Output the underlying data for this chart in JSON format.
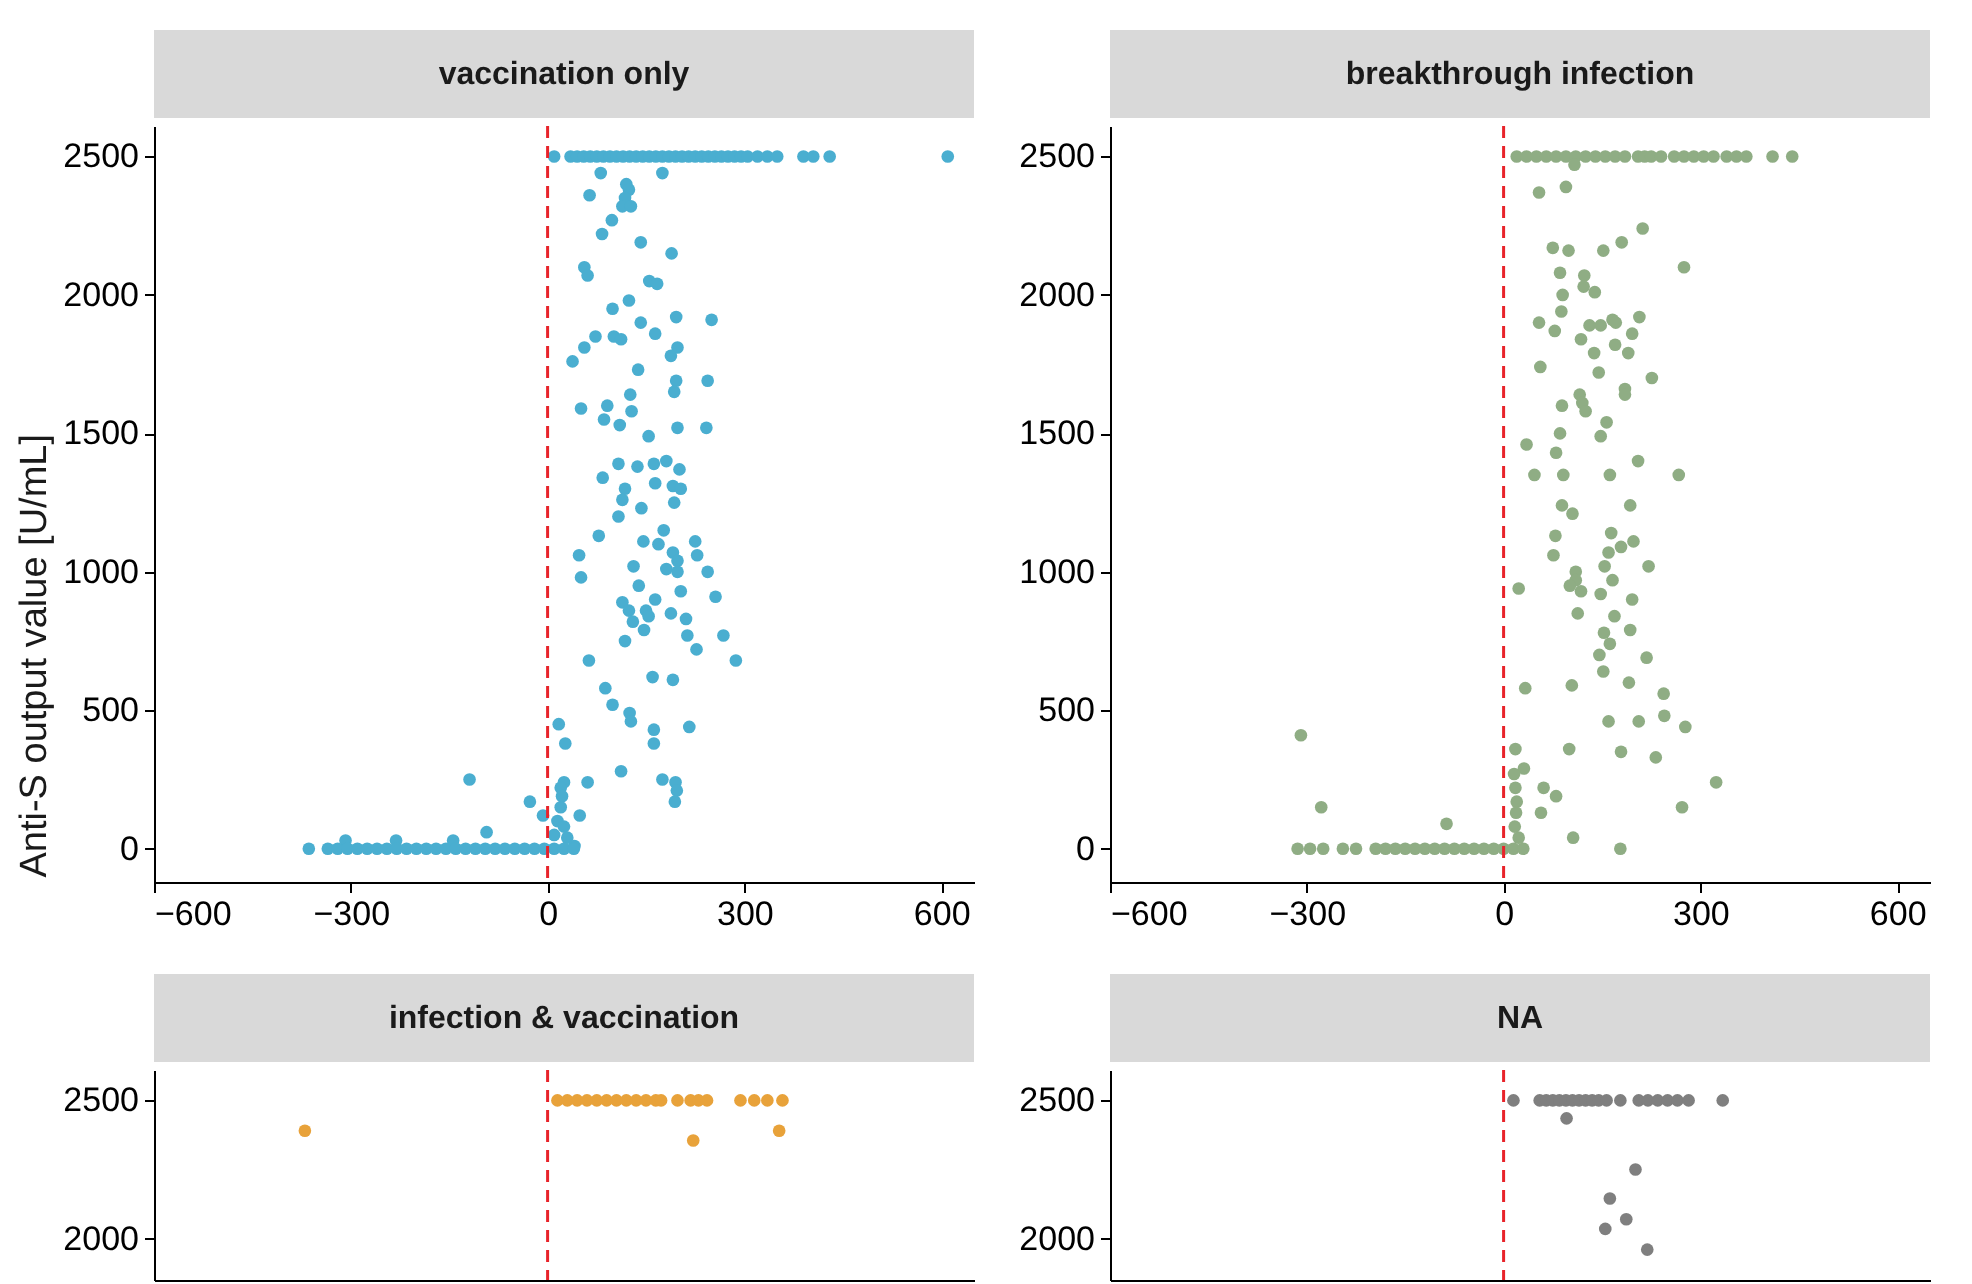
{
  "chart_data": [
    {
      "type": "scatter",
      "title": "vaccination only",
      "ylabel": "Anti-S output value [U/mL]",
      "color": "#4aaed0",
      "marker": "circle",
      "xlim": [
        -600,
        650
      ],
      "ylim": [
        -120,
        2610
      ],
      "xticks": [
        -600,
        -300,
        0,
        300,
        600
      ],
      "yticks": [
        0,
        500,
        1000,
        1500,
        2000,
        2500
      ],
      "ref_lines": [
        {
          "axis": "x",
          "value": 0,
          "color": "#e8232a",
          "line_style": "dashed"
        }
      ],
      "x": [
        10,
        35,
        45,
        55,
        65,
        75,
        85,
        95,
        105,
        115,
        125,
        135,
        145,
        155,
        165,
        175,
        185,
        195,
        205,
        215,
        225,
        235,
        245,
        255,
        265,
        275,
        285,
        295,
        305,
        320,
        335,
        350,
        390,
        405,
        430,
        610,
        81,
        120,
        124,
        118,
        114,
        127,
        175,
        64,
        98,
        83,
        142,
        189,
        56,
        61,
        155,
        167,
        124,
        99,
        142,
        196,
        250,
        164,
        101,
        112,
        73,
        56,
        38,
        198,
        188,
        138,
        196,
        193,
        244,
        126,
        51,
        91,
        128,
        86,
        110,
        198,
        242,
        154,
        108,
        137,
        162,
        181,
        201,
        84,
        164,
        118,
        114,
        191,
        203,
        143,
        193,
        108,
        78,
        177,
        146,
        169,
        225,
        228,
        48,
        191,
        198,
        131,
        181,
        198,
        244,
        51,
        139,
        203,
        256,
        114,
        124,
        130,
        150,
        147,
        154,
        164,
        188,
        211,
        213,
        118,
        227,
        268,
        287,
        63,
        160,
        191,
        88,
        99,
        125,
        127,
        17,
        162,
        162,
        216,
        27,
        112,
        -119,
        61,
        175,
        195,
        197,
        194,
        25,
        20,
        22,
        20,
        15,
        25,
        30,
        -27,
        -7,
        49,
        -93,
        -308,
        -231,
        -144,
        10,
        41,
        -364,
        -335,
        -320,
        -305,
        -290,
        -275,
        -260,
        -245,
        -230,
        -215,
        -200,
        -185,
        -170,
        -155,
        -140,
        -125,
        -110,
        -95,
        -80,
        -65,
        -50,
        -35,
        -20,
        -5,
        10,
        25,
        40
      ],
      "values": [
        2500,
        2500,
        2500,
        2500,
        2500,
        2500,
        2500,
        2500,
        2500,
        2500,
        2500,
        2500,
        2500,
        2500,
        2500,
        2500,
        2500,
        2500,
        2500,
        2500,
        2500,
        2500,
        2500,
        2500,
        2500,
        2500,
        2500,
        2500,
        2500,
        2500,
        2500,
        2500,
        2500,
        2500,
        2500,
        2500,
        2440,
        2400,
        2380,
        2350,
        2320,
        2320,
        2440,
        2360,
        2270,
        2220,
        2190,
        2150,
        2100,
        2070,
        2050,
        2040,
        1980,
        1950,
        1900,
        1920,
        1910,
        1860,
        1850,
        1840,
        1850,
        1810,
        1760,
        1810,
        1780,
        1730,
        1690,
        1650,
        1690,
        1640,
        1590,
        1600,
        1580,
        1550,
        1530,
        1520,
        1520,
        1490,
        1390,
        1380,
        1390,
        1400,
        1370,
        1340,
        1320,
        1300,
        1260,
        1310,
        1300,
        1230,
        1250,
        1200,
        1130,
        1150,
        1110,
        1100,
        1110,
        1060,
        1060,
        1070,
        1040,
        1020,
        1010,
        1000,
        1000,
        980,
        950,
        930,
        910,
        890,
        860,
        820,
        860,
        790,
        840,
        900,
        850,
        830,
        770,
        750,
        720,
        770,
        680,
        680,
        620,
        610,
        580,
        520,
        490,
        460,
        450,
        430,
        380,
        440,
        380,
        280,
        250,
        240,
        250,
        240,
        210,
        170,
        240,
        220,
        190,
        150,
        100,
        80,
        40,
        170,
        120,
        120,
        60,
        30,
        30,
        30,
        50,
        10,
        0,
        0,
        0,
        0,
        0,
        0,
        0,
        0,
        0,
        0,
        0,
        0,
        0,
        0,
        0,
        0,
        0,
        0,
        0,
        0,
        0,
        0,
        0,
        0,
        0,
        0,
        0
      ]
    },
    {
      "type": "scatter",
      "title": "breakthrough infection",
      "color": "#8fad84",
      "marker": "circle",
      "xlim": [
        -600,
        650
      ],
      "ylim": [
        -120,
        2610
      ],
      "xticks": [
        -600,
        -300,
        0,
        300,
        600
      ],
      "yticks": [
        0,
        500,
        1000,
        1500,
        2000,
        2500
      ],
      "ref_lines": [
        {
          "axis": "x",
          "value": 0,
          "color": "#e8232a",
          "line_style": "dashed"
        }
      ],
      "x": [
        20,
        35,
        50,
        65,
        80,
        95,
        110,
        125,
        140,
        155,
        170,
        185,
        205,
        215,
        225,
        240,
        260,
        275,
        290,
        305,
        320,
        340,
        355,
        370,
        410,
        440,
        108,
        54,
        95,
        212,
        180,
        152,
        75,
        99,
        275,
        86,
        123,
        122,
        139,
        90,
        88,
        54,
        78,
        131,
        148,
        166,
        171,
        207,
        196,
        118,
        170,
        138,
        190,
        56,
        145,
        226,
        116,
        120,
        89,
        125,
        185,
        185,
        157,
        86,
        148,
        35,
        80,
        205,
        47,
        91,
        162,
        267,
        89,
        105,
        193,
        79,
        164,
        198,
        179,
        76,
        160,
        154,
        221,
        110,
        110,
        101,
        118,
        166,
        23,
        148,
        196,
        113,
        169,
        153,
        193,
        162,
        146,
        218,
        152,
        33,
        104,
        191,
        244,
        245,
        160,
        206,
        277,
        -309,
        18,
        100,
        179,
        232,
        31,
        324,
        61,
        80,
        -278,
        272,
        57,
        -87,
        106,
        178,
        16,
        18,
        20,
        19,
        17,
        23,
        -314,
        -295,
        -275,
        -245,
        -225,
        -195,
        -180,
        -165,
        -150,
        -135,
        -120,
        -105,
        -90,
        -75,
        -60,
        -45,
        -30,
        -15,
        0,
        15,
        30
      ],
      "values": [
        2500,
        2500,
        2500,
        2500,
        2500,
        2500,
        2500,
        2500,
        2500,
        2500,
        2500,
        2500,
        2500,
        2500,
        2500,
        2500,
        2500,
        2500,
        2500,
        2500,
        2500,
        2500,
        2500,
        2500,
        2500,
        2500,
        2470,
        2370,
        2390,
        2240,
        2190,
        2160,
        2170,
        2160,
        2100,
        2080,
        2070,
        2030,
        2010,
        2000,
        1940,
        1900,
        1870,
        1890,
        1890,
        1910,
        1900,
        1920,
        1860,
        1840,
        1820,
        1790,
        1790,
        1740,
        1720,
        1700,
        1640,
        1610,
        1600,
        1580,
        1660,
        1640,
        1540,
        1500,
        1490,
        1460,
        1430,
        1400,
        1350,
        1350,
        1350,
        1350,
        1240,
        1210,
        1240,
        1130,
        1140,
        1110,
        1090,
        1060,
        1070,
        1020,
        1020,
        1000,
        970,
        950,
        930,
        970,
        940,
        920,
        900,
        850,
        840,
        780,
        790,
        740,
        700,
        690,
        640,
        580,
        590,
        600,
        560,
        480,
        460,
        460,
        440,
        410,
        360,
        360,
        350,
        330,
        290,
        240,
        220,
        190,
        150,
        150,
        130,
        90,
        40,
        0,
        270,
        220,
        170,
        130,
        80,
        40,
        0,
        0,
        0,
        0,
        0,
        0,
        0,
        0,
        0,
        0,
        0,
        0,
        0,
        0,
        0,
        0,
        0,
        0,
        0,
        0,
        0
      ]
    },
    {
      "type": "scatter",
      "title": "infection & vaccination",
      "color": "#e8a23a",
      "marker": "circle",
      "xlim": [
        -600,
        650
      ],
      "ylim": [
        1850,
        2610
      ],
      "xticks": [
        -600,
        -300,
        0,
        300,
        600
      ],
      "yticks": [
        2000,
        2500
      ],
      "tick_labels": "y",
      "ref_lines": [
        {
          "axis": "x",
          "value": 0,
          "color": "#e8232a",
          "line_style": "dashed"
        }
      ],
      "x": [
        15,
        30,
        45,
        60,
        75,
        90,
        105,
        120,
        135,
        150,
        165,
        173,
        198,
        218,
        230,
        243,
        294,
        315,
        335,
        358,
        -370,
        222,
        353
      ],
      "values": [
        2500,
        2500,
        2500,
        2500,
        2500,
        2500,
        2500,
        2500,
        2500,
        2500,
        2500,
        2500,
        2500,
        2500,
        2500,
        2500,
        2500,
        2500,
        2500,
        2500,
        2390,
        2355,
        2390
      ]
    },
    {
      "type": "scatter",
      "title": "NA",
      "color": "#7f7f7f",
      "marker": "circle",
      "xlim": [
        -600,
        650
      ],
      "ylim": [
        1850,
        2610
      ],
      "xticks": [
        -600,
        -300,
        0,
        300,
        600
      ],
      "yticks": [
        2000,
        2500
      ],
      "tick_labels": "y",
      "ref_lines": [
        {
          "axis": "x",
          "value": 0,
          "color": "#e8232a",
          "line_style": "dashed"
        }
      ],
      "x": [
        15,
        55,
        65,
        75,
        85,
        95,
        105,
        115,
        125,
        135,
        145,
        157,
        178,
        206,
        220,
        235,
        250,
        265,
        282,
        334,
        96,
        201,
        162,
        187,
        155,
        219
      ],
      "values": [
        2500,
        2500,
        2500,
        2500,
        2500,
        2500,
        2500,
        2500,
        2500,
        2500,
        2500,
        2500,
        2500,
        2500,
        2500,
        2500,
        2500,
        2500,
        2500,
        2500,
        2435,
        2250,
        2145,
        2070,
        2035,
        1960
      ]
    }
  ]
}
